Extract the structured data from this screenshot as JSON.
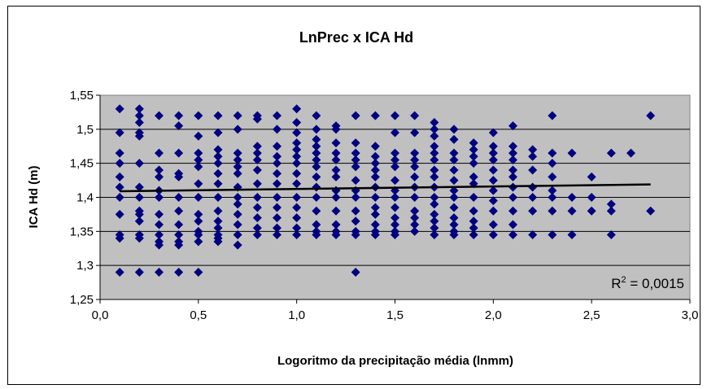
{
  "chart_data": {
    "type": "scatter",
    "title": "LnPrec x ICA Hd",
    "xlabel": "Logoritmo da precipitação média (lnmm)",
    "ylabel": "ICA Hd (m)",
    "xlim": [
      0,
      3
    ],
    "ylim": [
      1.25,
      1.55
    ],
    "x_ticks": [
      "0,0",
      "0,5",
      "1,0",
      "1,5",
      "2,0",
      "2,5",
      "3,0"
    ],
    "y_ticks": [
      "1,25",
      "1,3",
      "1,35",
      "1,4",
      "1,45",
      "1,5",
      "1,55"
    ],
    "grid": "horizontal",
    "plot_background": "#c0c0c0",
    "marker_color": "#000080",
    "marker": "diamond",
    "trendline": {
      "type": "linear",
      "x": [
        0.1,
        2.8
      ],
      "y": [
        1.409,
        1.419
      ],
      "color": "#000000"
    },
    "annotation": {
      "label": "R",
      "superscript": "2",
      "text": " = 0,0015"
    },
    "columns": [
      {
        "x": 0.1,
        "y": [
          1.53,
          1.495,
          1.465,
          1.45,
          1.43,
          1.415,
          1.4,
          1.375,
          1.345,
          1.34,
          1.29
        ]
      },
      {
        "x": 0.2,
        "y": [
          1.53,
          1.52,
          1.51,
          1.495,
          1.49,
          1.45,
          1.415,
          1.4,
          1.38,
          1.375,
          1.365,
          1.345,
          1.34,
          1.29
        ]
      },
      {
        "x": 0.3,
        "y": [
          1.52,
          1.465,
          1.44,
          1.43,
          1.41,
          1.4,
          1.375,
          1.36,
          1.345,
          1.335,
          1.33,
          1.29
        ]
      },
      {
        "x": 0.4,
        "y": [
          1.52,
          1.505,
          1.465,
          1.435,
          1.43,
          1.4,
          1.38,
          1.36,
          1.345,
          1.335,
          1.33,
          1.29
        ]
      },
      {
        "x": 0.5,
        "y": [
          1.52,
          1.49,
          1.465,
          1.455,
          1.445,
          1.42,
          1.4,
          1.375,
          1.365,
          1.35,
          1.345,
          1.335,
          1.29
        ]
      },
      {
        "x": 0.6,
        "y": [
          1.52,
          1.495,
          1.47,
          1.46,
          1.45,
          1.435,
          1.42,
          1.4,
          1.38,
          1.365,
          1.355,
          1.345,
          1.34,
          1.335
        ]
      },
      {
        "x": 0.7,
        "y": [
          1.52,
          1.5,
          1.465,
          1.455,
          1.445,
          1.435,
          1.415,
          1.4,
          1.39,
          1.375,
          1.36,
          1.345,
          1.33
        ]
      },
      {
        "x": 0.8,
        "y": [
          1.52,
          1.515,
          1.475,
          1.465,
          1.455,
          1.44,
          1.42,
          1.4,
          1.385,
          1.37,
          1.355,
          1.345
        ]
      },
      {
        "x": 0.9,
        "y": [
          1.52,
          1.5,
          1.475,
          1.46,
          1.45,
          1.435,
          1.42,
          1.4,
          1.385,
          1.37,
          1.355,
          1.345
        ]
      },
      {
        "x": 1.0,
        "y": [
          1.53,
          1.51,
          1.495,
          1.48,
          1.47,
          1.46,
          1.45,
          1.435,
          1.42,
          1.4,
          1.385,
          1.37,
          1.355,
          1.345
        ]
      },
      {
        "x": 1.1,
        "y": [
          1.52,
          1.5,
          1.485,
          1.475,
          1.465,
          1.455,
          1.445,
          1.43,
          1.415,
          1.4,
          1.38,
          1.36,
          1.35,
          1.345
        ]
      },
      {
        "x": 1.2,
        "y": [
          1.505,
          1.5,
          1.48,
          1.465,
          1.455,
          1.44,
          1.43,
          1.41,
          1.4,
          1.38,
          1.36,
          1.35,
          1.345
        ]
      },
      {
        "x": 1.3,
        "y": [
          1.52,
          1.48,
          1.465,
          1.455,
          1.445,
          1.425,
          1.41,
          1.4,
          1.38,
          1.365,
          1.35,
          1.345,
          1.29
        ]
      },
      {
        "x": 1.4,
        "y": [
          1.52,
          1.475,
          1.46,
          1.45,
          1.44,
          1.43,
          1.415,
          1.4,
          1.385,
          1.375,
          1.36,
          1.35,
          1.345
        ]
      },
      {
        "x": 1.5,
        "y": [
          1.52,
          1.495,
          1.465,
          1.455,
          1.445,
          1.425,
          1.41,
          1.4,
          1.385,
          1.37,
          1.36,
          1.35,
          1.345
        ]
      },
      {
        "x": 1.6,
        "y": [
          1.52,
          1.495,
          1.465,
          1.455,
          1.445,
          1.43,
          1.415,
          1.4,
          1.38,
          1.37,
          1.36,
          1.35
        ]
      },
      {
        "x": 1.7,
        "y": [
          1.51,
          1.5,
          1.49,
          1.475,
          1.465,
          1.455,
          1.44,
          1.43,
          1.415,
          1.4,
          1.39,
          1.375,
          1.365,
          1.355,
          1.345
        ]
      },
      {
        "x": 1.8,
        "y": [
          1.5,
          1.485,
          1.465,
          1.455,
          1.44,
          1.425,
          1.41,
          1.4,
          1.385,
          1.37,
          1.36,
          1.35,
          1.345
        ]
      },
      {
        "x": 1.9,
        "y": [
          1.48,
          1.47,
          1.46,
          1.45,
          1.43,
          1.42,
          1.4,
          1.38,
          1.365,
          1.355,
          1.345
        ]
      },
      {
        "x": 2.0,
        "y": [
          1.495,
          1.475,
          1.465,
          1.455,
          1.44,
          1.425,
          1.41,
          1.395,
          1.38,
          1.36,
          1.345
        ]
      },
      {
        "x": 2.1,
        "y": [
          1.505,
          1.475,
          1.465,
          1.455,
          1.44,
          1.43,
          1.415,
          1.4,
          1.38,
          1.36,
          1.345
        ]
      },
      {
        "x": 2.2,
        "y": [
          1.47,
          1.46,
          1.44,
          1.415,
          1.4,
          1.38,
          1.345
        ]
      },
      {
        "x": 2.3,
        "y": [
          1.52,
          1.465,
          1.45,
          1.43,
          1.41,
          1.4,
          1.38,
          1.345
        ]
      },
      {
        "x": 2.4,
        "y": [
          1.465,
          1.4,
          1.38,
          1.345
        ]
      },
      {
        "x": 2.5,
        "y": [
          1.43,
          1.4,
          1.38
        ]
      },
      {
        "x": 2.6,
        "y": [
          1.465,
          1.39,
          1.38,
          1.345
        ]
      },
      {
        "x": 2.7,
        "y": [
          1.465
        ]
      },
      {
        "x": 2.8,
        "y": [
          1.52,
          1.38
        ]
      }
    ]
  }
}
